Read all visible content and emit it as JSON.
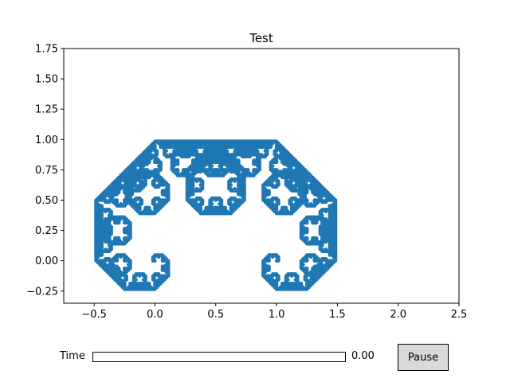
{
  "chart_data": {
    "type": "line",
    "title": "Test",
    "xlabel": "",
    "ylabel": "",
    "xlim": [
      -0.75,
      2.5
    ],
    "ylim": [
      -0.35,
      1.75
    ],
    "xticks": [
      -0.5,
      0.0,
      0.5,
      1.0,
      1.5,
      2.0,
      2.5
    ],
    "xtick_labels": [
      "−0.5",
      "0.0",
      "0.5",
      "1.0",
      "1.5",
      "2.0",
      "2.5"
    ],
    "yticks": [
      -0.25,
      0.0,
      0.25,
      0.5,
      0.75,
      1.0,
      1.25,
      1.5,
      1.75
    ],
    "ytick_labels": [
      "−0.25",
      "0.00",
      "0.25",
      "0.50",
      "0.75",
      "1.00",
      "1.25",
      "1.50",
      "1.75"
    ],
    "grid": false,
    "series_color": "#1f77b4",
    "curve": "Levy C curve fractal",
    "curve_endpoints": [
      [
        0,
        0
      ],
      [
        1,
        0
      ]
    ],
    "curve_iterations": 12
  },
  "controls": {
    "slider_label": "Time",
    "slider_value_text": "0.00",
    "slider_value": 0.0,
    "button_label": "Pause"
  }
}
